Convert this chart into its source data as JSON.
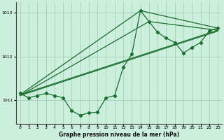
{
  "bg_color": "#cceedd",
  "grid_color": "#aaccbb",
  "line_color": "#1a6e2e",
  "xlabel": "Graphe pression niveau de la mer (hPa)",
  "ylim": [
    1010.45,
    1013.25
  ],
  "xlim": [
    -0.5,
    23.5
  ],
  "yticks": [
    1011,
    1012,
    1013
  ],
  "xticks": [
    0,
    1,
    2,
    3,
    4,
    5,
    6,
    7,
    8,
    9,
    10,
    11,
    12,
    13,
    14,
    15,
    16,
    17,
    18,
    19,
    20,
    21,
    22,
    23
  ],
  "main_x": [
    0,
    1,
    2,
    3,
    4,
    5,
    6,
    7,
    8,
    9,
    10,
    11,
    12,
    13,
    14,
    15,
    16,
    17,
    18,
    19,
    20,
    21,
    22,
    23
  ],
  "main_y": [
    1011.15,
    1011.05,
    1011.1,
    1011.15,
    1011.1,
    1011.05,
    1010.75,
    1010.65,
    1010.7,
    1010.72,
    1011.05,
    1011.1,
    1011.75,
    1012.05,
    1013.05,
    1012.8,
    1012.55,
    1012.42,
    1012.32,
    1012.08,
    1012.2,
    1012.32,
    1012.58,
    1012.65
  ],
  "trend1_x": [
    0,
    23
  ],
  "trend1_y": [
    1011.1,
    1012.58
  ],
  "trend2_x": [
    0,
    23
  ],
  "trend2_y": [
    1011.12,
    1012.6
  ],
  "trend3_x": [
    0,
    14,
    23
  ],
  "trend3_y": [
    1011.12,
    1013.05,
    1012.65
  ],
  "trend4_x": [
    0,
    15,
    23
  ],
  "trend4_y": [
    1011.1,
    1012.8,
    1012.6
  ]
}
